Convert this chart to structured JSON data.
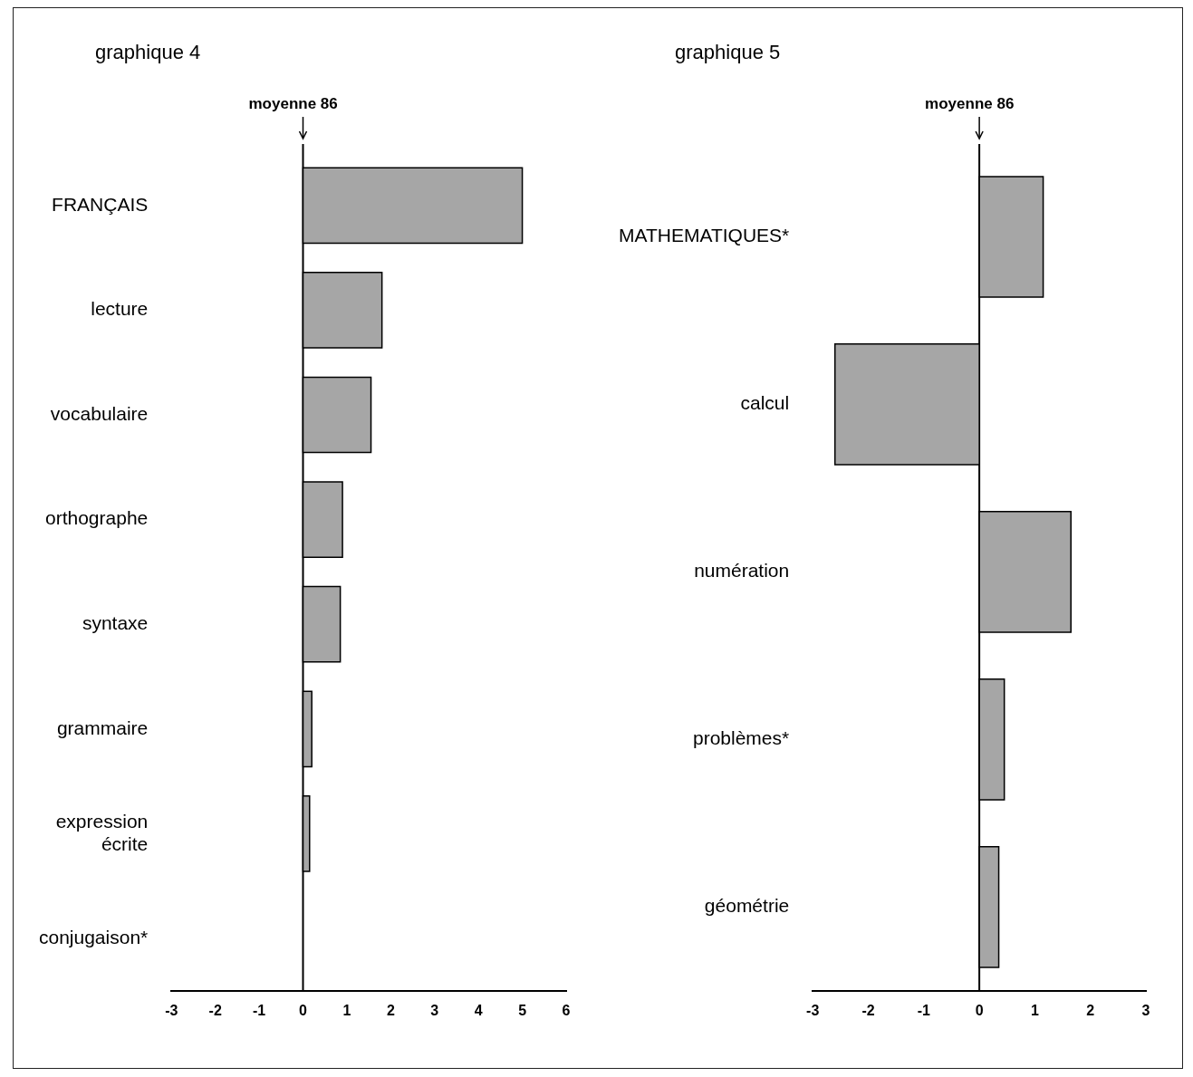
{
  "chart_data": [
    {
      "type": "bar",
      "orientation": "horizontal",
      "title": "graphique 4",
      "categories": [
        "FRANÇAIS",
        "lecture",
        "vocabulaire",
        "orthographe",
        "syntaxe",
        "grammaire",
        "expression écrite",
        "conjugaison*"
      ],
      "values": [
        5.0,
        1.8,
        1.55,
        0.9,
        0.85,
        0.2,
        0.15,
        0
      ],
      "color": "#a6a6a6",
      "xlim": [
        -3,
        6
      ],
      "xticks": [
        -3,
        -2,
        -1,
        0,
        1,
        2,
        3,
        4,
        5,
        6
      ],
      "ref_lines": [
        {
          "axis": "x",
          "value": 0,
          "label": "moyenne 86",
          "color": "#000000"
        }
      ]
    },
    {
      "type": "bar",
      "orientation": "horizontal",
      "title": "graphique 5",
      "categories": [
        "MATHEMATIQUES*",
        "calcul",
        "numération",
        "problèmes*",
        "géométrie"
      ],
      "values": [
        1.15,
        -2.6,
        1.65,
        0.45,
        0.35
      ],
      "color": "#a6a6a6",
      "xlim": [
        -3,
        3
      ],
      "xticks": [
        -3,
        -2,
        -1,
        0,
        1,
        2,
        3
      ],
      "ref_lines": [
        {
          "axis": "x",
          "value": 0,
          "label": "moyenne 86",
          "color": "#000000"
        }
      ]
    }
  ]
}
